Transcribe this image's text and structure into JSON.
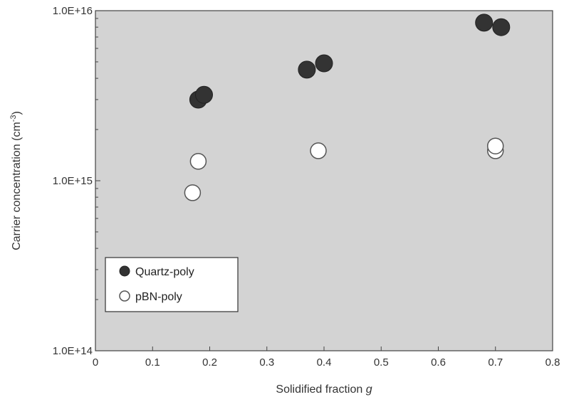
{
  "chart_data": {
    "type": "scatter",
    "xlabel": "Solidified fraction",
    "xlabel_symbol": "g",
    "ylabel": "Carrier concentration (cm",
    "ylabel_sup": "-3",
    "ylabel_close": ")",
    "xlim": [
      0,
      0.8
    ],
    "ylim": [
      100000000000000.0,
      1e+16
    ],
    "yscale": "log",
    "x_ticks": [
      "0",
      "0.1",
      "0.2",
      "0.3",
      "0.4",
      "0.5",
      "0.6",
      "0.7",
      "0.8"
    ],
    "y_ticks": [
      "1.0E+14",
      "1.0E+15",
      "1.0E+16"
    ],
    "y_tick_values": [
      100000000000000.0,
      1000000000000000.0,
      1e+16
    ],
    "grid": false,
    "plot_background": "#d3d3d3",
    "legend_position": "bottom-left",
    "series": [
      {
        "name": "Quartz-poly",
        "marker": "filled-circle",
        "color": "#333333",
        "points": [
          {
            "x": 0.18,
            "y": 3000000000000000.0
          },
          {
            "x": 0.19,
            "y": 3200000000000000.0
          },
          {
            "x": 0.37,
            "y": 4500000000000000.0
          },
          {
            "x": 0.4,
            "y": 4900000000000000.0
          },
          {
            "x": 0.68,
            "y": 8500000000000000.0
          },
          {
            "x": 0.71,
            "y": 8000000000000000.0
          }
        ]
      },
      {
        "name": "pBN-poly",
        "marker": "open-circle",
        "color": "#ffffff",
        "points": [
          {
            "x": 0.17,
            "y": 850000000000000.0
          },
          {
            "x": 0.18,
            "y": 1300000000000000.0
          },
          {
            "x": 0.39,
            "y": 1500000000000000.0
          },
          {
            "x": 0.7,
            "y": 1500000000000000.0
          },
          {
            "x": 0.7,
            "y": 1600000000000000.0
          }
        ]
      }
    ]
  }
}
